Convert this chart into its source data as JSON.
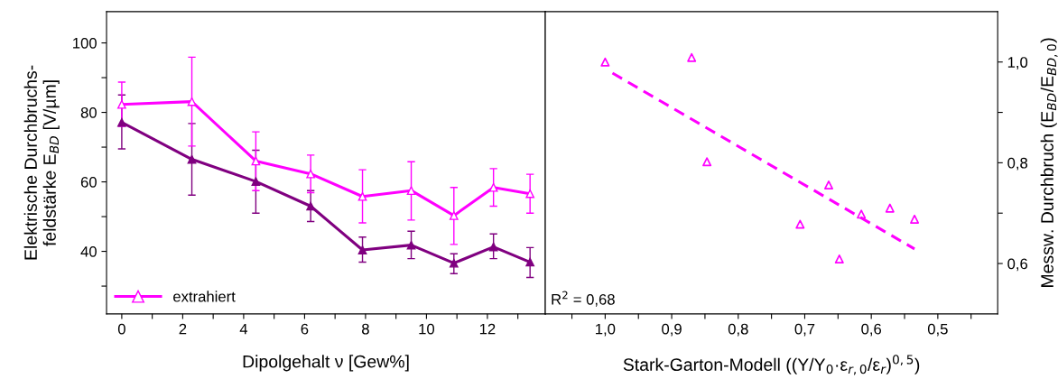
{
  "chart_data": [
    {
      "type": "line",
      "xlabel": "Dipolgehalt ν [Gew%]",
      "ylabel": "Elektrische Durchbruchs-\nfeldstärke E$_{BD}$ [V/µm]",
      "xlim": [
        -0.5,
        13.9
      ],
      "ylim": [
        22,
        109
      ],
      "xticks": [
        0,
        {
          "value": 1,
          "label": null
        },
        2,
        {
          "value": 3,
          "label": null
        },
        4,
        {
          "value": 5,
          "label": null
        },
        6,
        {
          "value": 7,
          "label": null
        },
        8,
        {
          "value": 9,
          "label": null
        },
        10,
        {
          "value": 11,
          "label": null
        },
        12,
        {
          "value": 13,
          "label": null
        }
      ],
      "yticks": [
        {
          "value": 30,
          "label": null
        },
        40,
        {
          "value": 50,
          "label": null
        },
        60,
        {
          "value": 70,
          "label": null
        },
        80,
        {
          "value": 90,
          "label": null
        },
        100
      ],
      "x": [
        0,
        2.3,
        4.4,
        6.2,
        7.9,
        9.5,
        10.9,
        12.2,
        13.4
      ],
      "marker": "triangle",
      "line_style": "solid",
      "grid": false,
      "legend": "bottom left",
      "series": [
        {
          "color": "#800080",
          "values": [
            77.1,
            66.5,
            60.1,
            53.0,
            40.4,
            41.8,
            36.6,
            41.3,
            36.9
          ],
          "errors": [
            [
              69.5,
              85.0
            ],
            [
              56.2,
              76.8
            ],
            [
              51.0,
              69.1
            ],
            [
              48.6,
              57.5
            ],
            [
              36.9,
              44.1
            ],
            [
              37.9,
              45.8
            ],
            [
              33.6,
              39.3
            ],
            [
              37.9,
              45.0
            ],
            [
              32.5,
              41.1
            ]
          ]
        },
        {
          "name": "extrahiert",
          "color": "#ff00ff",
          "values": [
            82.3,
            83.1,
            66.0,
            62.3,
            55.8,
            57.5,
            50.3,
            58.4,
            56.6
          ],
          "errors": [
            [
              76.0,
              88.7
            ],
            [
              70.3,
              95.9
            ],
            [
              57.5,
              74.4
            ],
            [
              56.9,
              67.7
            ],
            [
              48.2,
              63.5
            ],
            [
              49.0,
              65.8
            ],
            [
              42.0,
              58.4
            ],
            [
              53.0,
              63.8
            ],
            [
              51.0,
              62.2
            ]
          ]
        }
      ]
    },
    {
      "type": "scatter",
      "xlabel": "Stark-Garton-Modell ((Y/Y$_{0}$·ε$_{r,0}$/ε$_{r}$)$^{0,5}$)",
      "ylabel": "Messw. Durchbruch (E$_{BD}$/E$_{BD,0}$)",
      "xlim": [
        1.09,
        0.41
      ],
      "ylim": [
        0.5,
        1.1
      ],
      "xticks": [
        {
          "value": 1.05,
          "label": null
        },
        {
          "value": 1.0,
          "label": "1,0"
        },
        {
          "value": 0.95,
          "label": null
        },
        {
          "value": 0.9,
          "label": "0,9"
        },
        {
          "value": 0.85,
          "label": null
        },
        {
          "value": 0.8,
          "label": "0,8"
        },
        {
          "value": 0.75,
          "label": null
        },
        {
          "value": 0.7,
          "label": "0,7"
        },
        {
          "value": 0.65,
          "label": null
        },
        {
          "value": 0.6,
          "label": "0,6"
        },
        {
          "value": 0.55,
          "label": null
        },
        {
          "value": 0.5,
          "label": "0,5"
        },
        {
          "value": 0.45,
          "label": null
        }
      ],
      "yticks": [
        {
          "value": 0.6,
          "label": "0,6"
        },
        {
          "value": 0.7,
          "label": null
        },
        {
          "value": 0.8,
          "label": "0,8"
        },
        {
          "value": 0.9,
          "label": null
        },
        {
          "value": 1.0,
          "label": "1,0"
        }
      ],
      "grid": false,
      "legend": false,
      "annotations": [
        "R$^{2}$ = 0,68"
      ],
      "series": [
        {
          "type": "scatter",
          "marker": "triangle",
          "color": "#ff00ff",
          "x": [
            1.0,
            0.87,
            0.847,
            0.707,
            0.664,
            0.648,
            0.615,
            0.572,
            0.535
          ],
          "values": [
            1.0,
            1.009,
            0.802,
            0.678,
            0.756,
            0.609,
            0.698,
            0.71,
            0.688
          ]
        },
        {
          "type": "line",
          "line_style": "dashed",
          "color": "#ff00ff",
          "x": [
            0.989,
            0.535
          ],
          "values": [
            0.978,
            0.629
          ]
        }
      ]
    }
  ]
}
